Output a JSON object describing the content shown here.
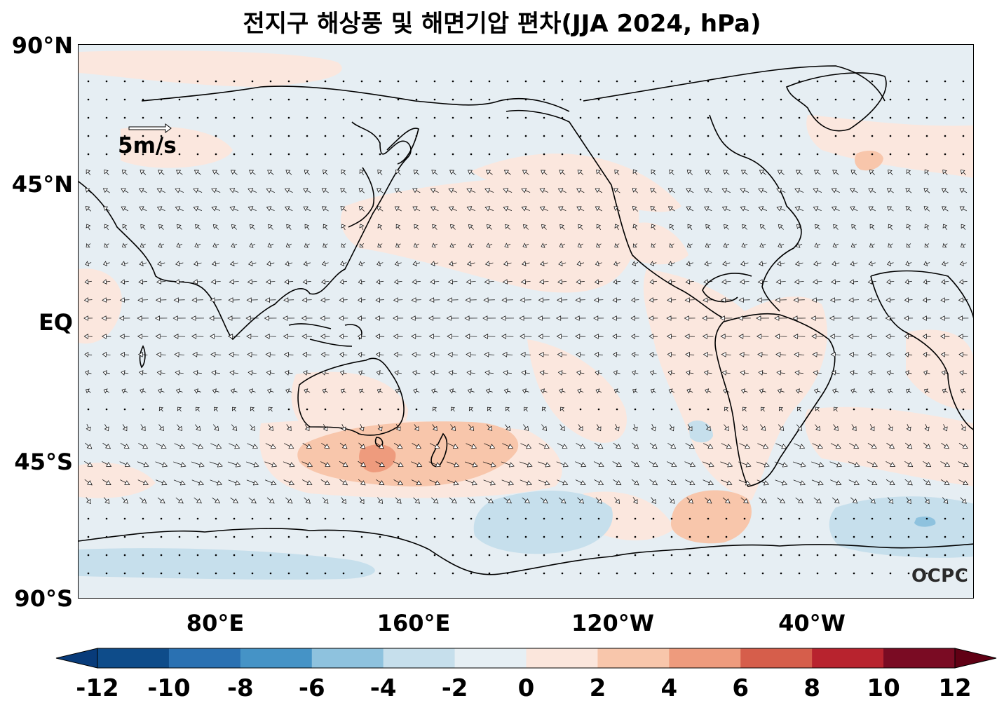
{
  "title": "전지구 해상풍 및 해면기압 편차(JJA 2024, hPa)",
  "lat_labels": [
    "90°N",
    "45°N",
    "EQ",
    "45°S",
    "90°S"
  ],
  "lon_labels": [
    "80°E",
    "160°E",
    "120°W",
    "40°W"
  ],
  "reference_vector": {
    "label": "5m/s",
    "magnitude": 5,
    "unit": "m/s"
  },
  "logo": "OCPC",
  "colorbar": {
    "ticks": [
      "-12",
      "-10",
      "-8",
      "-6",
      "-4",
      "-2",
      "0",
      "2",
      "4",
      "6",
      "8",
      "10",
      "12"
    ],
    "colors": [
      "#083b7a",
      "#0e4c8a",
      "#2a71b2",
      "#4593c6",
      "#8ec2de",
      "#c6dfec",
      "#e6eff4",
      "#fbe6dc",
      "#f8c6ab",
      "#ee9b7d",
      "#d65e4b",
      "#b8232e",
      "#7a0b23",
      "#600014"
    ],
    "extend": "both"
  },
  "colors": {
    "background_neutral": "#e6eef3",
    "positive_light": "#fbe7de",
    "positive_mid": "#f8c6ab",
    "positive_strong": "#ee9b7d",
    "negative_light": "#c6dfec",
    "negative_mid": "#8ec2de"
  }
}
